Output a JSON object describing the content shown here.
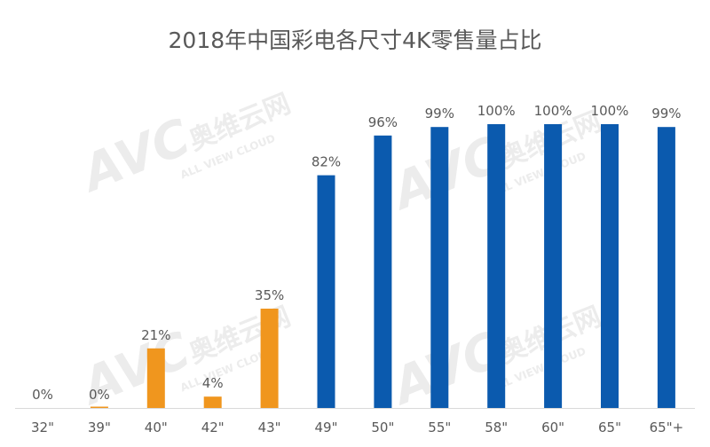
{
  "watermark": {
    "logo": "AVC",
    "cn": "奥维云网",
    "en": "ALL VIEW CLOUD"
  },
  "chart_data": {
    "type": "bar",
    "title": "2018年中国彩电各尺寸4K零售量占比",
    "xlabel": "",
    "ylabel": "",
    "ylim": [
      0,
      100
    ],
    "grid": false,
    "legend": "none",
    "categories": [
      "32\"",
      "39\"",
      "40\"",
      "42\"",
      "43\"",
      "49\"",
      "50\"",
      "55\"",
      "58\"",
      "60\"",
      "65\"",
      "65\"+"
    ],
    "values": [
      0,
      0,
      21,
      4,
      35,
      82,
      96,
      99,
      100,
      100,
      100,
      99
    ],
    "data_labels": [
      "0%",
      "0%",
      "21%",
      "4%",
      "35%",
      "82%",
      "96%",
      "99%",
      "100%",
      "100%",
      "100%",
      "99%"
    ],
    "colors": [
      "#F0961E",
      "#F0961E",
      "#F0961E",
      "#F0961E",
      "#F0961E",
      "#0B5AAE",
      "#0B5AAE",
      "#0B5AAE",
      "#0B5AAE",
      "#0B5AAE",
      "#0B5AAE",
      "#0B5AAE"
    ]
  }
}
